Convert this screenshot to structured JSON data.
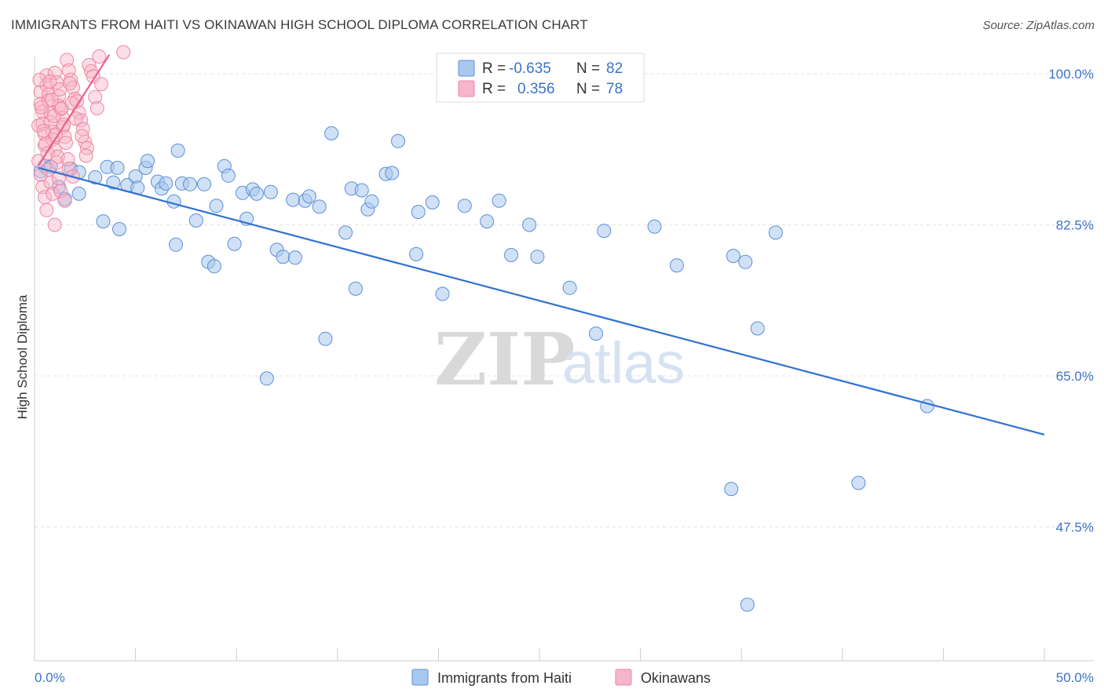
{
  "title": "IMMIGRANTS FROM HAITI VS OKINAWAN HIGH SCHOOL DIPLOMA CORRELATION CHART",
  "source": "Source: ZipAtlas.com",
  "watermark": {
    "zip": "ZIP",
    "atlas": "atlas"
  },
  "colors": {
    "blue_fill": "#a9c8ee",
    "blue_stroke": "#5b8fd8",
    "blue_line": "#2f72d0",
    "pink_fill": "#f6b5c8",
    "pink_stroke": "#ef86a5",
    "pink_line": "#e8628c",
    "grid": "#e3e3e3",
    "axis": "#cccccc",
    "tick_text": "#3a73c8"
  },
  "legend": {
    "rows": [
      {
        "r_label": "R =",
        "r_value": "-0.635",
        "n_label": "N =",
        "n_value": "82",
        "color": "blue"
      },
      {
        "r_label": "R =",
        "r_value": "0.356",
        "n_label": "N =",
        "n_value": "78",
        "color": "pink"
      }
    ]
  },
  "bottom_legend": [
    {
      "label": "Immigrants from Haiti",
      "color": "blue"
    },
    {
      "label": "Okinawans",
      "color": "pink"
    }
  ],
  "chart_data": {
    "type": "scatter",
    "title": "IMMIGRANTS FROM HAITI VS OKINAWAN HIGH SCHOOL DIPLOMA CORRELATION CHART",
    "xlabel": "",
    "ylabel": "High School Diploma",
    "xlim": [
      0,
      50
    ],
    "ylim": [
      32.0,
      102.0
    ],
    "x_tick_labels": [
      {
        "value": 0,
        "label": "0.0%"
      },
      {
        "value": 50,
        "label": "50.0%"
      }
    ],
    "y_ticks": [
      {
        "value": 100.0,
        "label": "100.0%"
      },
      {
        "value": 82.5,
        "label": "82.5%"
      },
      {
        "value": 65.0,
        "label": "65.0%"
      },
      {
        "value": 47.5,
        "label": "47.5%"
      }
    ],
    "x_minor_ticks": [
      0,
      5,
      10,
      15,
      20,
      25,
      30,
      35,
      40,
      45,
      50
    ],
    "series": [
      {
        "name": "Immigrants from Haiti",
        "color": "blue",
        "r": -0.635,
        "n": 82,
        "trend": {
          "x": [
            0.2,
            50.0
          ],
          "y": [
            89.1,
            58.2
          ]
        },
        "points": [
          [
            0.3,
            88.7
          ],
          [
            0.5,
            89.3
          ],
          [
            0.8,
            89.2
          ],
          [
            1.2,
            86.9
          ],
          [
            1.5,
            85.5
          ],
          [
            1.8,
            89.0
          ],
          [
            2.2,
            88.6
          ],
          [
            2.2,
            86.1
          ],
          [
            3.0,
            88.0
          ],
          [
            3.4,
            82.9
          ],
          [
            3.6,
            89.2
          ],
          [
            3.9,
            87.4
          ],
          [
            4.1,
            89.1
          ],
          [
            4.2,
            82.0
          ],
          [
            4.6,
            87.1
          ],
          [
            5.0,
            88.1
          ],
          [
            5.1,
            86.8
          ],
          [
            5.5,
            89.1
          ],
          [
            5.6,
            89.9
          ],
          [
            6.1,
            87.5
          ],
          [
            6.3,
            86.7
          ],
          [
            6.5,
            87.3
          ],
          [
            6.9,
            85.2
          ],
          [
            7.1,
            91.1
          ],
          [
            7.3,
            87.3
          ],
          [
            7.7,
            87.2
          ],
          [
            8.0,
            83.0
          ],
          [
            8.4,
            87.2
          ],
          [
            8.6,
            78.2
          ],
          [
            8.9,
            77.7
          ],
          [
            9.0,
            84.7
          ],
          [
            9.4,
            89.3
          ],
          [
            9.6,
            88.2
          ],
          [
            9.9,
            80.3
          ],
          [
            10.3,
            86.2
          ],
          [
            10.5,
            83.2
          ],
          [
            10.8,
            86.6
          ],
          [
            11.0,
            86.1
          ],
          [
            11.7,
            86.3
          ],
          [
            12.0,
            79.6
          ],
          [
            12.3,
            78.8
          ],
          [
            12.8,
            85.4
          ],
          [
            12.9,
            78.7
          ],
          [
            13.4,
            85.3
          ],
          [
            13.6,
            85.8
          ],
          [
            14.1,
            84.6
          ],
          [
            14.4,
            69.3
          ],
          [
            14.7,
            93.1
          ],
          [
            15.4,
            81.6
          ],
          [
            15.7,
            86.7
          ],
          [
            15.9,
            75.1
          ],
          [
            16.2,
            86.5
          ],
          [
            16.5,
            84.3
          ],
          [
            16.7,
            85.2
          ],
          [
            17.4,
            88.4
          ],
          [
            17.7,
            88.5
          ],
          [
            18.0,
            92.2
          ],
          [
            18.9,
            79.1
          ],
          [
            19.7,
            85.1
          ],
          [
            20.2,
            74.5
          ],
          [
            21.3,
            84.7
          ],
          [
            22.4,
            82.9
          ],
          [
            23.0,
            85.3
          ],
          [
            23.6,
            79.0
          ],
          [
            24.5,
            82.5
          ],
          [
            24.9,
            78.8
          ],
          [
            26.5,
            75.2
          ],
          [
            27.8,
            69.9
          ],
          [
            28.2,
            81.8
          ],
          [
            30.7,
            82.3
          ],
          [
            31.8,
            77.8
          ],
          [
            34.5,
            51.9
          ],
          [
            34.6,
            78.9
          ],
          [
            35.2,
            78.2
          ],
          [
            35.8,
            70.5
          ],
          [
            36.7,
            81.6
          ],
          [
            40.8,
            52.6
          ],
          [
            44.2,
            61.5
          ],
          [
            7.0,
            80.2
          ],
          [
            11.5,
            64.7
          ],
          [
            19.0,
            84.0
          ],
          [
            35.3,
            38.5
          ]
        ]
      },
      {
        "name": "Okinawans",
        "color": "pink",
        "r": 0.356,
        "n": 78,
        "trend": {
          "x": [
            0.2,
            3.7
          ],
          "y": [
            89.4,
            102.2
          ]
        },
        "points": [
          [
            0.2,
            94.0
          ],
          [
            0.3,
            97.9
          ],
          [
            0.3,
            96.5
          ],
          [
            0.4,
            95.6
          ],
          [
            0.4,
            94.2
          ],
          [
            0.5,
            93.0
          ],
          [
            0.5,
            91.7
          ],
          [
            0.6,
            99.8
          ],
          [
            0.6,
            98.7
          ],
          [
            0.7,
            97.6
          ],
          [
            0.7,
            96.9
          ],
          [
            0.8,
            95.4
          ],
          [
            0.8,
            94.4
          ],
          [
            0.9,
            93.3
          ],
          [
            0.9,
            92.4
          ],
          [
            1.0,
            91.2
          ],
          [
            1.0,
            100.1
          ],
          [
            1.1,
            99.0
          ],
          [
            1.2,
            97.4
          ],
          [
            1.2,
            96.3
          ],
          [
            1.3,
            95.9
          ],
          [
            1.4,
            94.9
          ],
          [
            1.4,
            93.8
          ],
          [
            1.5,
            92.7
          ],
          [
            1.6,
            101.6
          ],
          [
            1.7,
            100.4
          ],
          [
            1.8,
            99.3
          ],
          [
            1.9,
            98.4
          ],
          [
            2.0,
            97.1
          ],
          [
            2.1,
            96.8
          ],
          [
            2.2,
            95.5
          ],
          [
            2.3,
            94.6
          ],
          [
            2.4,
            93.6
          ],
          [
            2.5,
            92.1
          ],
          [
            2.6,
            91.4
          ],
          [
            2.7,
            101.0
          ],
          [
            2.8,
            100.3
          ],
          [
            2.9,
            99.7
          ],
          [
            3.0,
            97.3
          ],
          [
            3.2,
            102.0
          ],
          [
            0.2,
            89.9
          ],
          [
            0.3,
            88.3
          ],
          [
            0.4,
            86.9
          ],
          [
            0.5,
            85.7
          ],
          [
            0.6,
            84.2
          ],
          [
            0.7,
            88.9
          ],
          [
            0.8,
            87.4
          ],
          [
            0.9,
            86.1
          ],
          [
            1.0,
            82.5
          ],
          [
            1.1,
            89.7
          ],
          [
            1.2,
            87.9
          ],
          [
            1.3,
            86.4
          ],
          [
            1.5,
            85.3
          ],
          [
            1.7,
            89.0
          ],
          [
            1.9,
            88.1
          ],
          [
            0.25,
            99.3
          ],
          [
            0.35,
            96.1
          ],
          [
            0.45,
            93.4
          ],
          [
            0.55,
            91.9
          ],
          [
            0.65,
            90.8
          ],
          [
            0.75,
            99.1
          ],
          [
            0.85,
            97.0
          ],
          [
            0.95,
            95.1
          ],
          [
            1.05,
            92.9
          ],
          [
            1.15,
            90.4
          ],
          [
            1.25,
            98.2
          ],
          [
            1.35,
            96.0
          ],
          [
            1.45,
            94.1
          ],
          [
            1.55,
            92.0
          ],
          [
            1.65,
            90.1
          ],
          [
            1.75,
            98.9
          ],
          [
            1.85,
            96.6
          ],
          [
            2.05,
            94.8
          ],
          [
            2.35,
            92.8
          ],
          [
            2.55,
            90.5
          ],
          [
            3.1,
            96.0
          ],
          [
            3.3,
            98.8
          ],
          [
            4.4,
            102.5
          ]
        ]
      }
    ]
  }
}
